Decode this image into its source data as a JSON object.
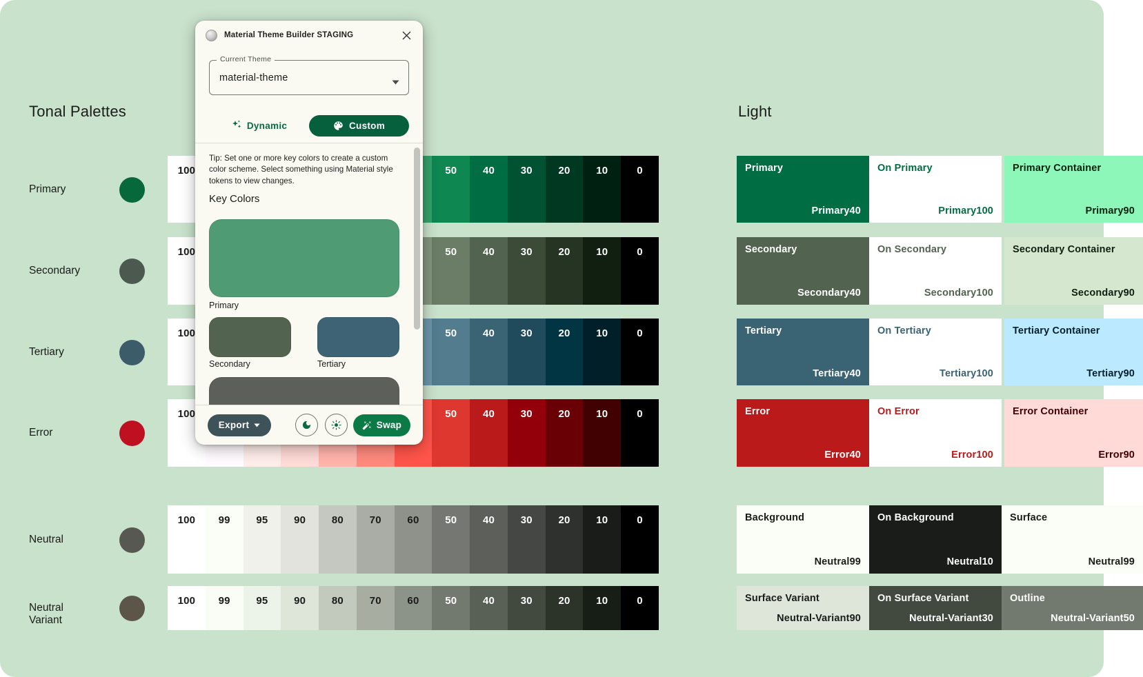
{
  "canvas": {
    "background": "#C9E2CC"
  },
  "tonal_palettes": {
    "title": "Tonal Palettes",
    "tones": [
      "100",
      "99",
      "95",
      "90",
      "80",
      "70",
      "60",
      "50",
      "40",
      "30",
      "20",
      "10",
      "0"
    ],
    "rows": [
      {
        "label": "Primary",
        "dot": "#07693B",
        "colors": [
          "#FFFFFF",
          "#F5FFF2",
          "#BFFFD1",
          "#8DF7B9",
          "#71DA9E",
          "#54BE84",
          "#35A26B",
          "#0E8751",
          "#006D42",
          "#005232",
          "#003822",
          "#002112",
          "#000000"
        ]
      },
      {
        "label": "Secondary",
        "dot": "#4C594E",
        "colors": [
          "#FFFFFF",
          "#F6FFEF",
          "#E7F5E0",
          "#D5E8CF",
          "#B9CCB4",
          "#9EB099",
          "#849580",
          "#6B7C67",
          "#52634F",
          "#3B4B38",
          "#253423",
          "#101F10",
          "#000000"
        ]
      },
      {
        "label": "Tertiary",
        "dot": "#3C5B6B",
        "colors": [
          "#FFFFFF",
          "#F6FAFF",
          "#E0F3FF",
          "#BBE9FF",
          "#A2CDE0",
          "#87B1C4",
          "#6C96A9",
          "#537C8E",
          "#3A6374",
          "#204B5C",
          "#013544",
          "#001F28",
          "#000000"
        ]
      },
      {
        "label": "Error",
        "dot": "#BE1021",
        "colors": [
          "#FFFFFF",
          "#FFFBFF",
          "#FFEDEA",
          "#FFDAD6",
          "#FFB4AB",
          "#FF897D",
          "#FF5449",
          "#DE3730",
          "#BA1A1A",
          "#93000A",
          "#690005",
          "#410002",
          "#000000"
        ]
      },
      {
        "label": "Neutral",
        "dot": "#575852",
        "colors": [
          "#FFFFFF",
          "#FBFDF7",
          "#F0F1EB",
          "#E2E3DD",
          "#C5C7C1",
          "#AAACA6",
          "#8F918B",
          "#757872",
          "#5C5F5A",
          "#444743",
          "#2E312D",
          "#191C19",
          "#000000"
        ]
      },
      {
        "label": "Neutral Variant",
        "dot": "#5D5648",
        "colors": [
          "#FFFFFF",
          "#FAFDF5",
          "#ECF3E8",
          "#DEE5D9",
          "#C2C9BD",
          "#A7AEA1",
          "#8C9388",
          "#72796E",
          "#596156",
          "#42493F",
          "#2C3329",
          "#171E15",
          "#000000"
        ]
      }
    ]
  },
  "light_scheme": {
    "title": "Light",
    "rows": [
      {
        "cells": [
          {
            "title": "Primary",
            "value": "Primary40",
            "bg": "#006D42",
            "fg": "#FFFFFF"
          },
          {
            "title": "On Primary",
            "value": "Primary100",
            "bg": "#FFFFFF",
            "fg": "#006D42"
          },
          {
            "title": "Primary Container",
            "value": "Primary90",
            "bg": "#8DF7B9",
            "fg": "#00210F"
          }
        ]
      },
      {
        "cells": [
          {
            "title": "Secondary",
            "value": "Secondary40",
            "bg": "#52634F",
            "fg": "#FFFFFF"
          },
          {
            "title": "On Secondary",
            "value": "Secondary100",
            "bg": "#FFFFFF",
            "fg": "#52634F"
          },
          {
            "title": "Secondary Container",
            "value": "Secondary90",
            "bg": "#D5E8CF",
            "fg": "#101F10"
          }
        ]
      },
      {
        "cells": [
          {
            "title": "Tertiary",
            "value": "Tertiary40",
            "bg": "#3A6374",
            "fg": "#FFFFFF"
          },
          {
            "title": "On Tertiary",
            "value": "Tertiary100",
            "bg": "#FFFFFF",
            "fg": "#3A6374"
          },
          {
            "title": "Tertiary Container",
            "value": "Tertiary90",
            "bg": "#BBE9FF",
            "fg": "#001F28"
          }
        ]
      },
      {
        "cells": [
          {
            "title": "Error",
            "value": "Error40",
            "bg": "#BA1A1A",
            "fg": "#FFFFFF"
          },
          {
            "title": "On Error",
            "value": "Error100",
            "bg": "#FFFFFF",
            "fg": "#BA1A1A"
          },
          {
            "title": "Error Container",
            "value": "Error90",
            "bg": "#FFDAD6",
            "fg": "#410002"
          }
        ]
      },
      {
        "cells": [
          {
            "title": "Background",
            "value": "Neutral99",
            "bg": "#FBFDF7",
            "fg": "#191C19"
          },
          {
            "title": "On Background",
            "value": "Neutral10",
            "bg": "#191C19",
            "fg": "#FFFFFF"
          },
          {
            "title": "Surface",
            "value": "Neutral99",
            "bg": "#FBFDF7",
            "fg": "#191C19"
          }
        ]
      },
      {
        "cells": [
          {
            "title": "Surface Variant",
            "value": "Neutral-Variant90",
            "bg": "#DEE5D9",
            "fg": "#191C19"
          },
          {
            "title": "On Surface Variant",
            "value": "Neutral-Variant30",
            "bg": "#42493F",
            "fg": "#FFFFFF"
          },
          {
            "title": "Outline",
            "value": "Neutral-Variant50",
            "bg": "#72796E",
            "fg": "#FFFFFF"
          }
        ]
      }
    ]
  },
  "plugin": {
    "title": "Material Theme Builder STAGING",
    "theme_field": {
      "label": "Current Theme",
      "value": "material-theme"
    },
    "dynamic_label": "Dynamic",
    "custom_label": "Custom",
    "tip": "Tip: Set one or more key colors to create a custom color scheme. Select something using Material style tokens to view changes.",
    "key_colors_title": "Key Colors",
    "key_colors": {
      "primary": {
        "label": "Primary",
        "color": "#4F9B74"
      },
      "secondary": {
        "label": "Secondary",
        "color": "#52634F"
      },
      "tertiary": {
        "label": "Tertiary",
        "color": "#3D6375"
      },
      "neutral": {
        "color": "#5D5F5A"
      }
    },
    "export_label": "Export",
    "swap_label": "Swap",
    "accent_green": "#0A6B45",
    "custom_button_bg": "#07603D",
    "export_button_bg": "#3E525A",
    "swap_button_bg": "#0B7A46"
  }
}
